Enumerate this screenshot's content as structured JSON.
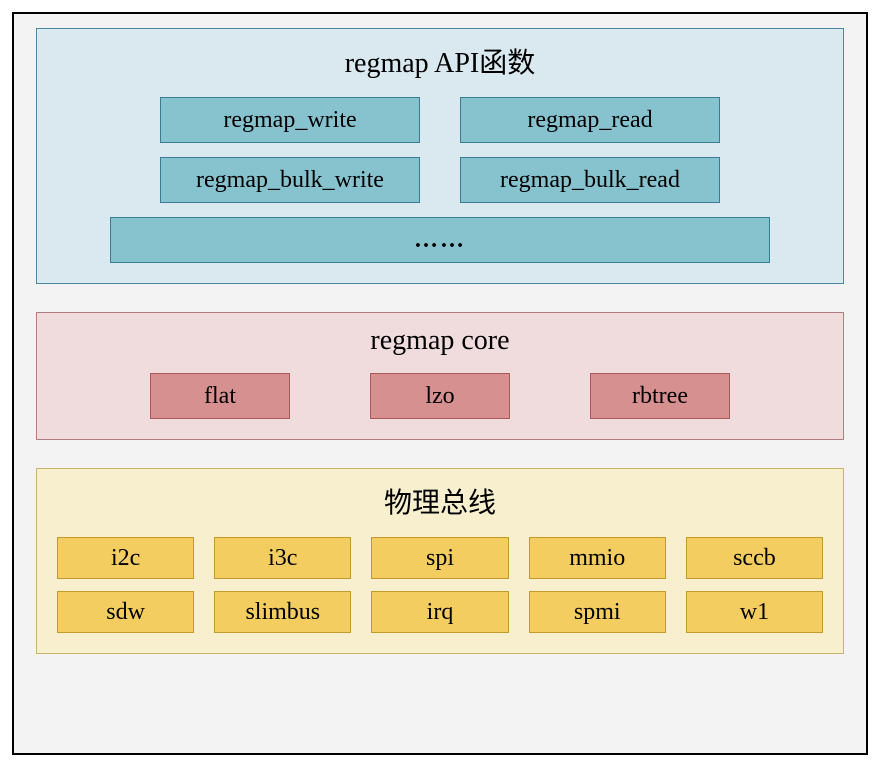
{
  "colors": {
    "api_bg": "#d9e9ef",
    "api_border": "#4a8aa0",
    "api_box_bg": "#87c3cf",
    "api_box_border": "#3a7c90",
    "core_bg": "#f0dcdc",
    "core_border": "#b37d7d",
    "core_box_bg": "#d5908f",
    "core_box_border": "#a85a5a",
    "bus_bg": "#f7efce",
    "bus_border": "#c9b56a",
    "bus_box_bg": "#f3cd60",
    "bus_box_border": "#c49a2a"
  },
  "api": {
    "title": "regmap API函数",
    "row1": [
      "regmap_write",
      "regmap_read"
    ],
    "row2": [
      "regmap_bulk_write",
      "regmap_bulk_read"
    ],
    "more": "……"
  },
  "core": {
    "title": "regmap core",
    "items": [
      "flat",
      "lzo",
      "rbtree"
    ]
  },
  "bus": {
    "title": "物理总线",
    "row1": [
      "i2c",
      "i3c",
      "spi",
      "mmio",
      "sccb"
    ],
    "row2": [
      "sdw",
      "slimbus",
      "irq",
      "spmi",
      "w1"
    ]
  }
}
